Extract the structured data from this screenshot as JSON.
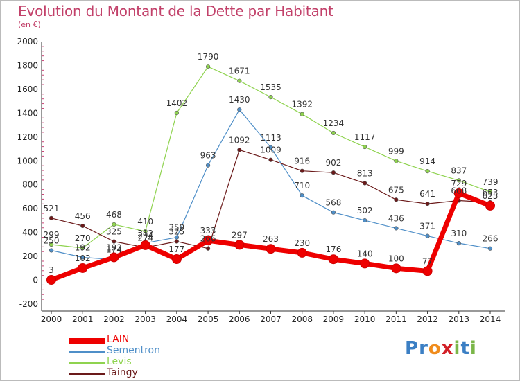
{
  "title": "Evolution du Montant de la Dette par Habitant",
  "subtitle": "(en €)",
  "logo": {
    "text": "Proxiti",
    "letters": [
      "P",
      "r",
      "o",
      "x",
      "i",
      "t",
      "i"
    ],
    "colors": [
      "#3b7fc4",
      "#3b7fc4",
      "#f08c1c",
      "#d21f26",
      "#7ab648",
      "#3b7fc4",
      "#7ab648"
    ]
  },
  "chart_data": {
    "type": "line",
    "x": [
      2000,
      2001,
      2002,
      2003,
      2004,
      2005,
      2006,
      2007,
      2008,
      2009,
      2010,
      2011,
      2012,
      2013,
      2014
    ],
    "x_tick_labels": [
      "2000",
      "2001",
      "2002",
      "2003",
      "2004",
      "2005",
      "2006",
      "2007",
      "2008",
      "2009",
      "2010",
      "2011",
      "2012",
      "2013",
      "2014"
    ],
    "ylim": [
      -200,
      2000
    ],
    "y_ticks": [
      -200,
      0,
      200,
      400,
      600,
      800,
      1000,
      1200,
      1400,
      1600,
      1800,
      2000
    ],
    "grid": false,
    "legend_placement": "bottom-left",
    "series": [
      {
        "name": "Sementron",
        "color": "#4f8fc8",
        "width": 1.2,
        "marker": 2.8,
        "values": [
          250,
          192,
          174,
          312,
          359,
          963,
          1430,
          1113,
          710,
          568,
          502,
          436,
          371,
          310,
          266
        ]
      },
      {
        "name": "Levis",
        "color": "#8fd34f",
        "width": 1.2,
        "marker": 2.8,
        "values": [
          299,
          270,
          468,
          410,
          1402,
          1790,
          1671,
          1535,
          1392,
          1234,
          1117,
          999,
          914,
          837,
          739
        ]
      },
      {
        "name": "Taingy",
        "color": "#6b1a1a",
        "width": 1.2,
        "marker": 2.8,
        "values": [
          521,
          456,
          325,
          274,
          325,
          266,
          1092,
          1009,
          916,
          902,
          813,
          675,
          641,
          668,
          653
        ]
      },
      {
        "name": "LAIN",
        "color": "#ee0000",
        "width": 7,
        "marker": 6.5,
        "values": [
          3,
          102,
          192,
          294,
          177,
          333,
          297,
          263,
          230,
          176,
          140,
          100,
          77,
          729,
          625
        ]
      }
    ]
  }
}
